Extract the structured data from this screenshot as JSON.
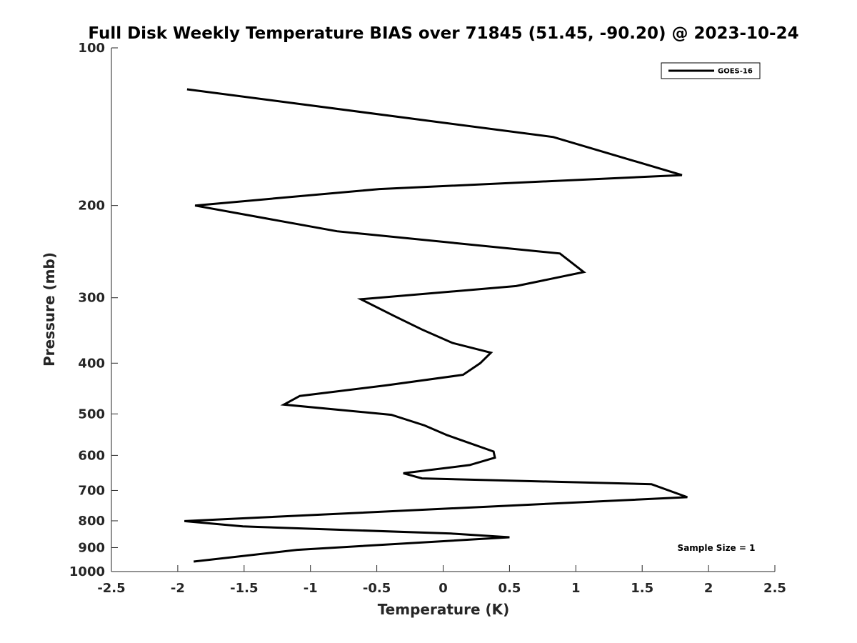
{
  "chart_data": {
    "type": "line",
    "title": "Full Disk Weekly Temperature BIAS over 71845 (51.45, -90.20) @ 2023-10-24",
    "xlabel": "Temperature (K)",
    "ylabel": "Pressure (mb)",
    "xlim": [
      -2.5,
      2.5
    ],
    "ylim": [
      100,
      1000
    ],
    "y_scale": "log",
    "y_reversed": true,
    "grid": false,
    "legend_position": "top-right",
    "x_ticks": [
      "-2.5",
      "-2",
      "-1.5",
      "-1",
      "-0.5",
      "0",
      "0.5",
      "1",
      "1.5",
      "2",
      "2.5"
    ],
    "x_tick_values": [
      -2.5,
      -2,
      -1.5,
      -1,
      -0.5,
      0,
      0.5,
      1,
      1.5,
      2,
      2.5
    ],
    "y_ticks": [
      "100",
      "200",
      "300",
      "400",
      "500",
      "600",
      "700",
      "800",
      "900",
      "1000"
    ],
    "y_tick_values": [
      100,
      200,
      300,
      400,
      500,
      600,
      700,
      800,
      900,
      1000
    ],
    "series": [
      {
        "name": "GOES-16",
        "color": "#000000",
        "points": [
          [
            -1.93,
            120
          ],
          [
            0.83,
            148
          ],
          [
            1.8,
            175
          ],
          [
            -0.48,
            186
          ],
          [
            -1.87,
            200
          ],
          [
            -0.8,
            224
          ],
          [
            0.88,
            247
          ],
          [
            1.06,
            268
          ],
          [
            0.55,
            285
          ],
          [
            -0.62,
            302
          ],
          [
            -0.37,
            325
          ],
          [
            -0.16,
            345
          ],
          [
            0.07,
            366
          ],
          [
            0.36,
            382
          ],
          [
            0.28,
            400
          ],
          [
            0.15,
            421
          ],
          [
            -0.43,
            441
          ],
          [
            -1.08,
            462
          ],
          [
            -1.2,
            480
          ],
          [
            -0.39,
            502
          ],
          [
            -0.14,
            526
          ],
          [
            0.03,
            549
          ],
          [
            0.38,
            590
          ],
          [
            0.39,
            606
          ],
          [
            0.2,
            626
          ],
          [
            -0.3,
            649
          ],
          [
            -0.16,
            664
          ],
          [
            1.57,
            681
          ],
          [
            1.84,
            721
          ],
          [
            -1.95,
            801
          ],
          [
            -1.51,
            820
          ],
          [
            0.06,
            846
          ],
          [
            0.5,
            860
          ],
          [
            -1.1,
            909
          ],
          [
            -1.88,
            957
          ]
        ]
      }
    ],
    "annotations": [
      "Sample Size = 1"
    ]
  }
}
